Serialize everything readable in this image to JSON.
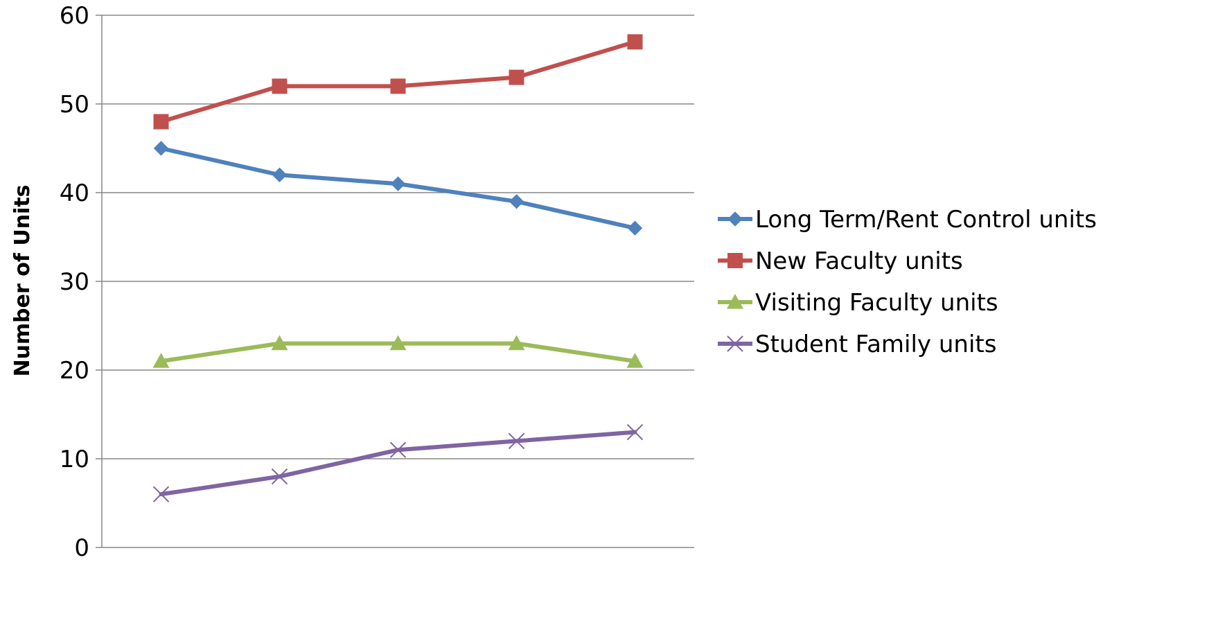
{
  "chart_data": {
    "type": "line",
    "title": "",
    "xlabel": "",
    "ylabel": "Number of Units",
    "ylim": [
      0,
      60
    ],
    "yticks": [
      0,
      10,
      20,
      30,
      40,
      50,
      60
    ],
    "x": [
      1,
      2,
      3,
      4,
      5
    ],
    "grid": "horizontal",
    "legend_position": "right",
    "series": [
      {
        "name": "Long Term/Rent Control units",
        "values": [
          45,
          42,
          41,
          39,
          36
        ],
        "color": "#4f81bd",
        "marker": "diamond"
      },
      {
        "name": "New Faculty units",
        "values": [
          48,
          52,
          52,
          53,
          57
        ],
        "color": "#c0504d",
        "marker": "square"
      },
      {
        "name": "Visiting Faculty units",
        "values": [
          21,
          23,
          23,
          23,
          21
        ],
        "color": "#9bbb59",
        "marker": "triangle"
      },
      {
        "name": "Student Family units",
        "values": [
          6,
          8,
          11,
          12,
          13
        ],
        "color": "#8064a2",
        "marker": "x"
      }
    ]
  }
}
